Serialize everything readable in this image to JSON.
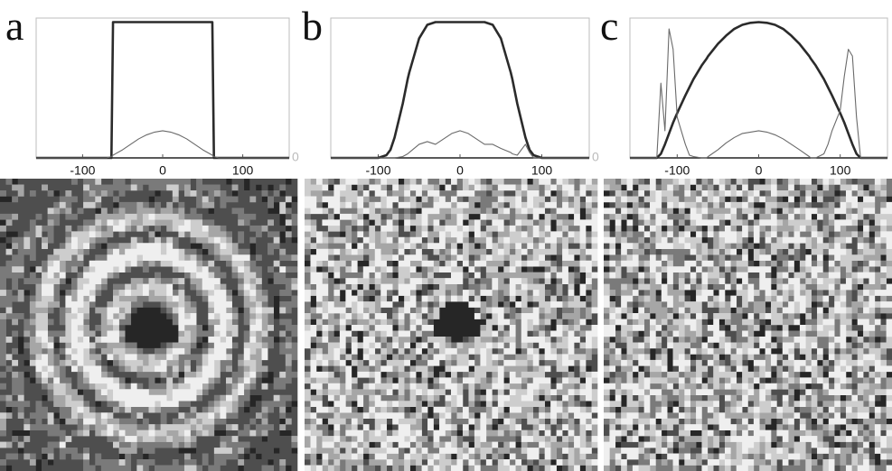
{
  "chart_data": [
    {
      "type": "line",
      "label": "a",
      "x": [
        -158,
        -140,
        -125,
        -120,
        -115,
        -110,
        -105,
        -100,
        -90,
        -85,
        -80,
        -70,
        -64,
        -62,
        -50,
        -40,
        -30,
        -20,
        -10,
        0,
        10,
        20,
        30,
        40,
        50,
        62,
        64,
        70,
        80,
        85,
        90,
        100,
        105,
        110,
        115,
        120,
        125,
        140,
        158
      ],
      "xlim": [
        -158,
        158
      ],
      "xticks": [
        -100,
        0,
        100
      ],
      "ylim": [
        0,
        1.03
      ],
      "yticks": [
        0
      ],
      "series": [
        {
          "color": "#2b2b2b",
          "values": [
            0,
            0,
            0,
            0,
            0,
            0,
            0,
            0,
            0,
            0,
            0,
            0,
            0,
            1,
            1,
            1,
            1,
            1,
            1,
            1,
            1,
            1,
            1,
            1,
            1,
            1,
            0,
            0,
            0,
            0,
            0,
            0,
            0,
            0,
            0,
            0,
            0,
            0,
            0
          ]
        },
        {
          "color": "#6a6a6a",
          "values": [
            0,
            0,
            0,
            0,
            0,
            0,
            0,
            0,
            0,
            0,
            0,
            0,
            0.01,
            0.02,
            0.06,
            0.1,
            0.14,
            0.17,
            0.19,
            0.2,
            0.19,
            0.17,
            0.14,
            0.1,
            0.06,
            0.02,
            0.01,
            0,
            0,
            0,
            0,
            0,
            0,
            0,
            0,
            0,
            0,
            0,
            0
          ]
        }
      ]
    },
    {
      "type": "line",
      "label": "b",
      "x": [
        -158,
        -140,
        -125,
        -120,
        -115,
        -110,
        -105,
        -100,
        -90,
        -85,
        -80,
        -70,
        -64,
        -62,
        -50,
        -40,
        -30,
        -20,
        -10,
        0,
        10,
        20,
        30,
        40,
        50,
        62,
        64,
        70,
        80,
        85,
        90,
        100,
        105,
        110,
        115,
        120,
        125,
        140,
        158
      ],
      "xlim": [
        -158,
        158
      ],
      "xticks": [
        -100,
        0,
        100
      ],
      "ylim": [
        0,
        1.03
      ],
      "yticks": [
        0
      ],
      "series": [
        {
          "color": "#2b2b2b",
          "values": [
            0,
            0,
            0,
            0,
            0,
            0,
            0,
            0,
            0.02,
            0.06,
            0.15,
            0.4,
            0.58,
            0.63,
            0.88,
            0.98,
            1,
            1,
            1,
            1,
            1,
            1,
            1,
            0.98,
            0.88,
            0.63,
            0.58,
            0.4,
            0.15,
            0.06,
            0.02,
            0,
            0,
            0,
            0,
            0,
            0,
            0,
            0
          ]
        },
        {
          "color": "#6a6a6a",
          "values": [
            0,
            0,
            0,
            0,
            0,
            0,
            0,
            0,
            0,
            0,
            0,
            0.01,
            0.03,
            0.04,
            0.1,
            0.12,
            0.1,
            0.14,
            0.18,
            0.2,
            0.18,
            0.14,
            0.1,
            0.1,
            0.07,
            0.04,
            0.03,
            0.02,
            0.1,
            0.04,
            0,
            0,
            0,
            0,
            0,
            0,
            0,
            0,
            0
          ]
        }
      ]
    },
    {
      "type": "line",
      "label": "c",
      "x": [
        -158,
        -140,
        -125,
        -120,
        -115,
        -110,
        -105,
        -100,
        -90,
        -85,
        -80,
        -70,
        -64,
        -62,
        -50,
        -40,
        -30,
        -20,
        -10,
        0,
        10,
        20,
        30,
        40,
        50,
        62,
        64,
        70,
        80,
        85,
        90,
        100,
        105,
        110,
        115,
        120,
        125,
        140,
        158
      ],
      "xlim": [
        -158,
        158
      ],
      "xticks": [
        -100,
        0,
        100
      ],
      "ylim": [
        0,
        1.03
      ],
      "series": [
        {
          "color": "#2b2b2b",
          "values": [
            0,
            0,
            0,
            0.03,
            0.1,
            0.18,
            0.26,
            0.33,
            0.46,
            0.52,
            0.58,
            0.68,
            0.73,
            0.75,
            0.84,
            0.9,
            0.95,
            0.98,
            0.995,
            1,
            0.995,
            0.98,
            0.95,
            0.9,
            0.84,
            0.75,
            0.73,
            0.68,
            0.58,
            0.52,
            0.46,
            0.33,
            0.26,
            0.18,
            0.1,
            0.03,
            0,
            0,
            0
          ]
        },
        {
          "color": "#6a6a6a",
          "values": [
            0,
            0,
            0,
            0.55,
            0.2,
            0.95,
            0.8,
            0.3,
            0.1,
            0.02,
            0.01,
            0,
            0,
            0.01,
            0.06,
            0.11,
            0.15,
            0.18,
            0.19,
            0.2,
            0.19,
            0.17,
            0.14,
            0.1,
            0.06,
            0.01,
            0,
            0,
            0.03,
            0.1,
            0.2,
            0.35,
            0.6,
            0.8,
            0.75,
            0.3,
            0,
            0,
            0
          ]
        }
      ]
    }
  ]
}
